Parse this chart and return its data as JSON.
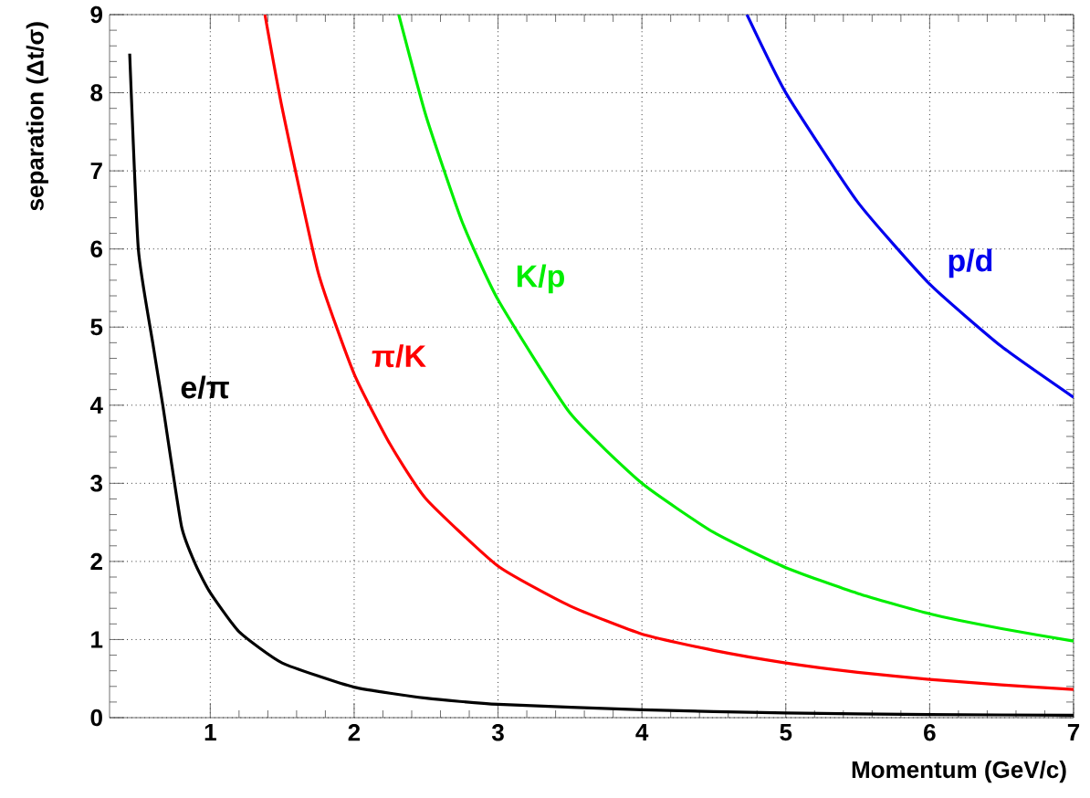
{
  "chart_data": {
    "type": "line",
    "xlabel": "Momentum (GeV/c)",
    "ylabel": "separation (Δt/σ)",
    "xlim": [
      0.3,
      7
    ],
    "ylim": [
      0,
      9
    ],
    "xticks": [
      1,
      2,
      3,
      4,
      5,
      6,
      7
    ],
    "yticks": [
      0,
      1,
      2,
      3,
      4,
      5,
      6,
      7,
      8,
      9
    ],
    "grid": true,
    "legend": false,
    "marker": "none",
    "line_style": "solid",
    "series": [
      {
        "name": "e/π",
        "color": "#000000",
        "x": [
          0.44,
          0.5,
          0.6,
          0.67,
          0.8,
          0.9,
          1,
          1.2,
          1.5,
          2,
          2.5,
          3,
          4,
          5,
          6,
          7
        ],
        "values": [
          8.5,
          6.0,
          4.8,
          4.0,
          2.45,
          1.95,
          1.6,
          1.1,
          0.7,
          0.39,
          0.25,
          0.17,
          0.1,
          0.06,
          0.04,
          0.03
        ]
      },
      {
        "name": "π/K",
        "color": "#ff0000",
        "x": [
          1.38,
          1.5,
          1.75,
          2,
          2.25,
          2.5,
          3,
          3.5,
          4,
          4.5,
          5,
          5.5,
          6,
          6.5,
          7
        ],
        "values": [
          9.0,
          7.8,
          5.7,
          4.4,
          3.5,
          2.8,
          1.94,
          1.43,
          1.07,
          0.86,
          0.7,
          0.58,
          0.49,
          0.42,
          0.36
        ]
      },
      {
        "name": "K/p",
        "color": "#00ee00",
        "x": [
          2.31,
          2.5,
          2.75,
          3,
          3.5,
          4,
          4.5,
          5,
          5.5,
          6,
          6.5,
          7
        ],
        "values": [
          9.0,
          7.7,
          6.35,
          5.35,
          3.9,
          3.0,
          2.37,
          1.92,
          1.59,
          1.33,
          1.14,
          0.98
        ]
      },
      {
        "name": "p/d",
        "color": "#0000ee",
        "x": [
          4.73,
          5,
          5.5,
          6,
          6.5,
          7
        ],
        "values": [
          9.0,
          8.0,
          6.6,
          5.55,
          4.75,
          4.1
        ]
      }
    ]
  }
}
